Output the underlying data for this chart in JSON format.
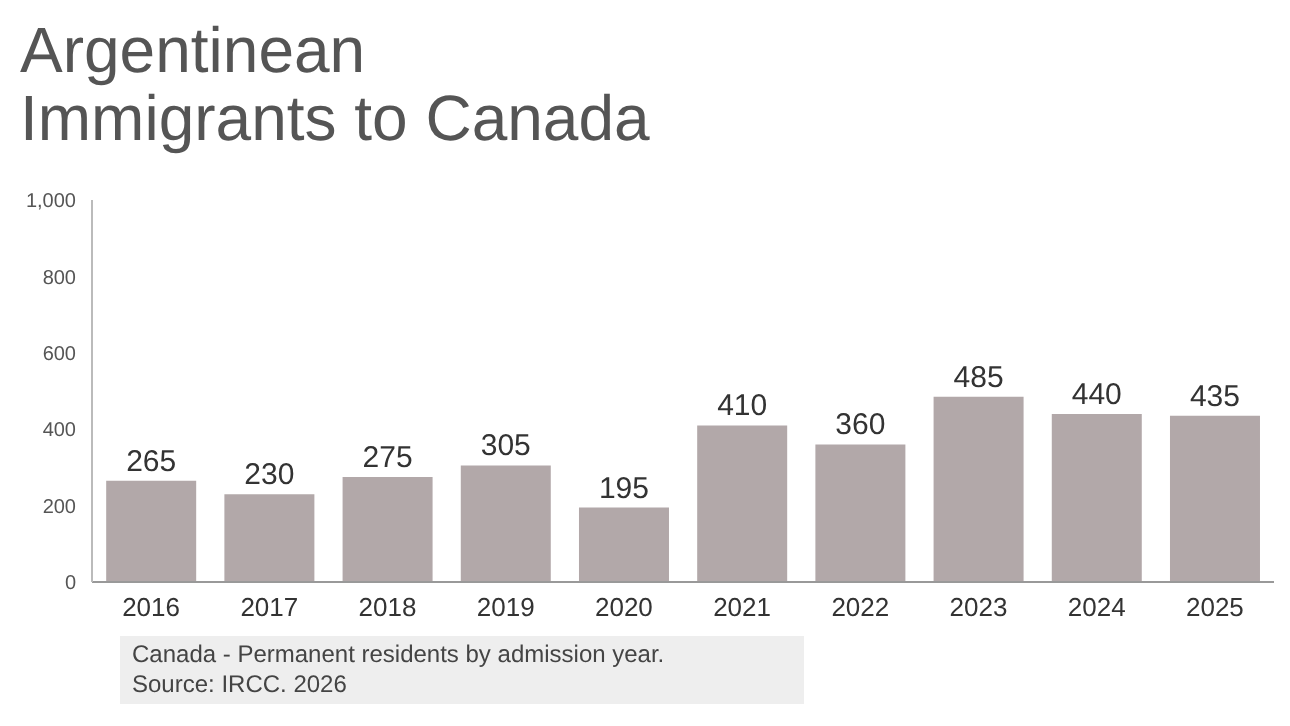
{
  "chart_data": {
    "type": "bar",
    "title": "Argentinean Immigrants to Canada",
    "categories": [
      "2016",
      "2017",
      "2018",
      "2019",
      "2020",
      "2021",
      "2022",
      "2023",
      "2024",
      "2025"
    ],
    "values": [
      265,
      230,
      275,
      305,
      195,
      410,
      360,
      485,
      440,
      435
    ],
    "color": "#b2a8a9",
    "ylim": [
      0,
      1000
    ],
    "yticks": [
      0,
      200,
      400,
      600,
      800,
      {
        "value": 1000,
        "label": "1,000"
      }
    ],
    "grid": false,
    "data_labels": true,
    "annotations": [
      "Canada - Permanent residents by admission year.",
      "Source: IRCC. 2026"
    ]
  }
}
